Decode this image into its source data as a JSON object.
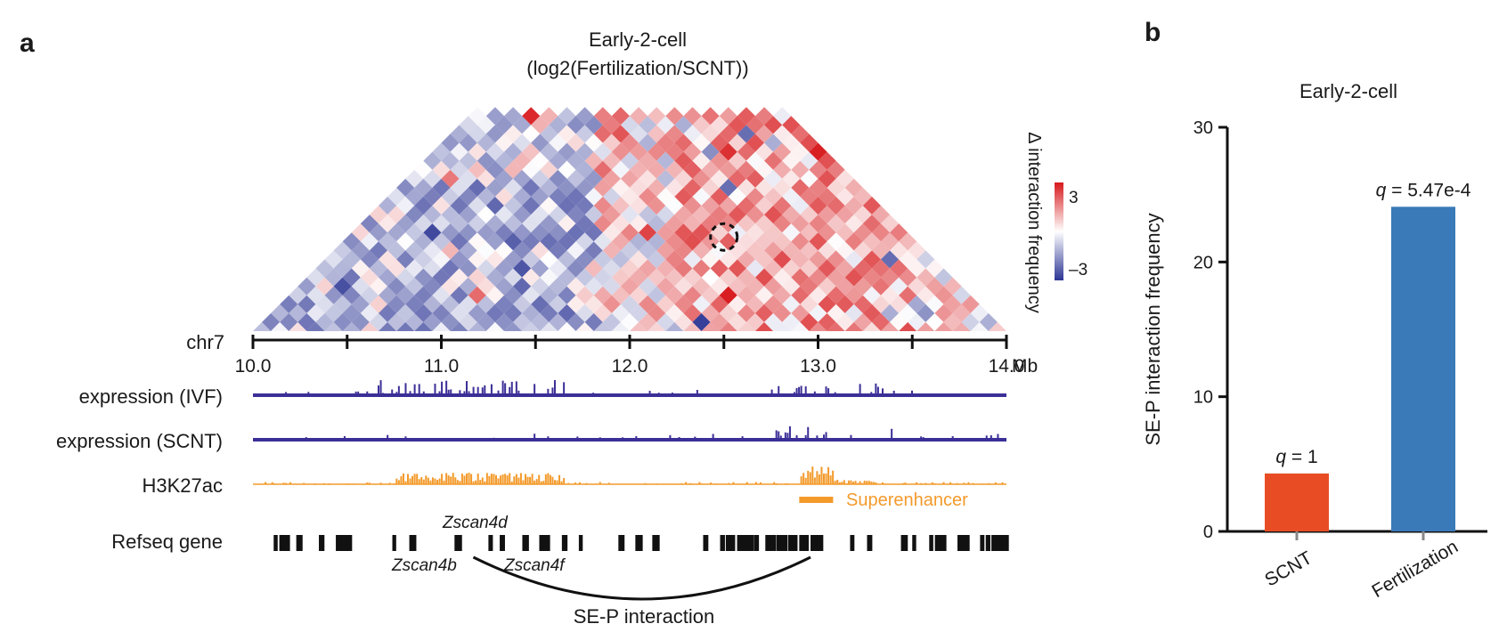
{
  "panel_a": {
    "letter": "a",
    "title_line1": "Early-2-cell",
    "title_line2": "(log2(Fertilization/SCNT))",
    "chrom_label": "chr7",
    "axis_unit": "Mb",
    "colorbar": {
      "label": "Δ interaction frequency",
      "max_label": "3",
      "min_label": "–3",
      "max_color": "#d7191c",
      "mid_color": "#ffffff",
      "min_color": "#2c3594"
    },
    "tracks": [
      {
        "label": "expression (IVF)",
        "color": "#3b2f97"
      },
      {
        "label": "expression (SCNT)",
        "color": "#3b2f97"
      },
      {
        "label": "H3K27ac",
        "color": "#f39a2b"
      }
    ],
    "superenhancer_label": "Superenhancer",
    "refseq_label": "Refseq gene",
    "genes": [
      {
        "name": "Zscan4d"
      },
      {
        "name": "Zscan4b"
      },
      {
        "name": "Zscan4f"
      }
    ],
    "interaction_label": "SE-P interaction"
  },
  "panel_b": {
    "letter": "b"
  },
  "chart_data": [
    {
      "type": "heatmap",
      "title": "Early-2-cell (log2(Fertilization/SCNT))",
      "xlabel": "chr7",
      "x_unit": "Mb",
      "xlim": [
        10.0,
        14.0
      ],
      "x_ticks": [
        10.0,
        10.5,
        11.0,
        11.5,
        12.0,
        12.5,
        13.0,
        13.5,
        14.0
      ],
      "x_tick_labels": [
        "10.0",
        "",
        "11.0",
        "",
        "12.0",
        "",
        "13.0",
        "",
        "14.0"
      ],
      "colorbar_range": [
        -3,
        3
      ],
      "colorbar_label": "Δ interaction frequency",
      "highlight_mb": [
        12.0,
        13.0
      ],
      "superenhancer_mb": [
        12.9,
        13.08
      ],
      "gene_positions_mb": {
        "Zscan4d": 11.16,
        "Zscan4b": 11.14,
        "Zscan4f": 11.4
      },
      "interaction_mb": [
        11.17,
        12.96
      ]
    },
    {
      "type": "bar",
      "title": "Early-2-cell",
      "categories": [
        "SCNT",
        "Fertilization"
      ],
      "values": [
        4.3,
        24.1
      ],
      "colors": [
        "#e84c25",
        "#3a7ab8"
      ],
      "annotations": [
        "q = 1",
        "q = 5.47e-4"
      ],
      "xlabel": "",
      "ylabel": "SE-P interaction frequency",
      "ylim": [
        0,
        30
      ],
      "y_ticks": [
        0,
        10,
        20,
        30
      ]
    }
  ]
}
